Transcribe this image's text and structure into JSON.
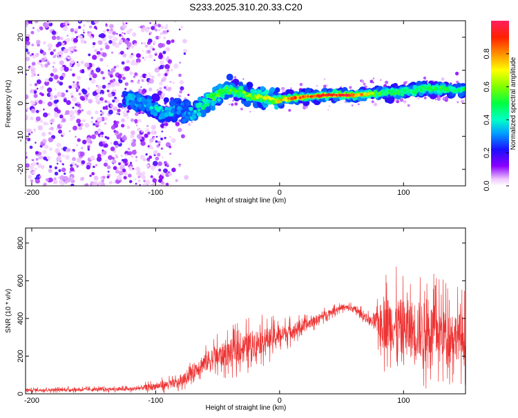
{
  "title": "S233.2025.310.20.33.C20",
  "chart_data": [
    {
      "type": "heatmap",
      "id": "spectrogram",
      "xlabel": "Height of straight line (km)",
      "ylabel": "Frequency (Hz)",
      "xlim": [
        -205,
        150
      ],
      "ylim": [
        -25,
        25
      ],
      "xticks": [
        -200,
        -100,
        0,
        100
      ],
      "yticks": [
        -20,
        -10,
        0,
        10,
        20
      ],
      "colorbar": {
        "label": "Normalized spectral amplitude",
        "range": [
          0,
          1
        ],
        "ticks": [
          "0.0",
          "0.2",
          "0.4",
          "0.6",
          "0.8"
        ],
        "tick_values": [
          0.0,
          0.2,
          0.4,
          0.6,
          0.8
        ]
      },
      "ridge": {
        "description_points_x": [
          -125,
          -110,
          -100,
          -90,
          -80,
          -70,
          -60,
          -50,
          -40,
          -30,
          -20,
          -10,
          0,
          20,
          40,
          60,
          80,
          100,
          120,
          150
        ],
        "frequency_hz": [
          1,
          0,
          -2,
          -3,
          -2,
          -3,
          0,
          3,
          4,
          3,
          2,
          1.5,
          1,
          2,
          2.5,
          2.5,
          3,
          3.5,
          4.5,
          4
        ],
        "peak_amplitude": [
          0.3,
          0.35,
          0.4,
          0.35,
          0.3,
          0.35,
          0.45,
          0.5,
          0.55,
          0.55,
          0.6,
          0.65,
          0.7,
          0.85,
          0.9,
          0.95,
          0.5,
          0.45,
          0.5,
          0.5
        ]
      },
      "noise_region_x": [
        -205,
        -75
      ]
    },
    {
      "type": "line",
      "id": "snr",
      "xlabel": "Height of straight line (km)",
      "ylabel": "SNR (10 * v/v)",
      "xlim": [
        -205,
        150
      ],
      "ylim": [
        0,
        880
      ],
      "xticks": [
        -200,
        -100,
        0,
        100
      ],
      "yticks": [
        0,
        200,
        400,
        600,
        800
      ],
      "color": "#ee3333",
      "envelope": {
        "x": [
          -205,
          -120,
          -100,
          -80,
          -70,
          -60,
          -40,
          -20,
          0,
          20,
          40,
          50,
          60,
          75,
          85,
          100,
          110,
          130,
          150
        ],
        "mean": [
          20,
          25,
          40,
          60,
          120,
          170,
          220,
          270,
          310,
          360,
          430,
          460,
          450,
          380,
          380,
          350,
          340,
          330,
          300
        ],
        "spread": [
          12,
          15,
          30,
          40,
          60,
          90,
          110,
          120,
          80,
          50,
          30,
          25,
          30,
          40,
          230,
          250,
          260,
          230,
          200
        ]
      }
    }
  ]
}
